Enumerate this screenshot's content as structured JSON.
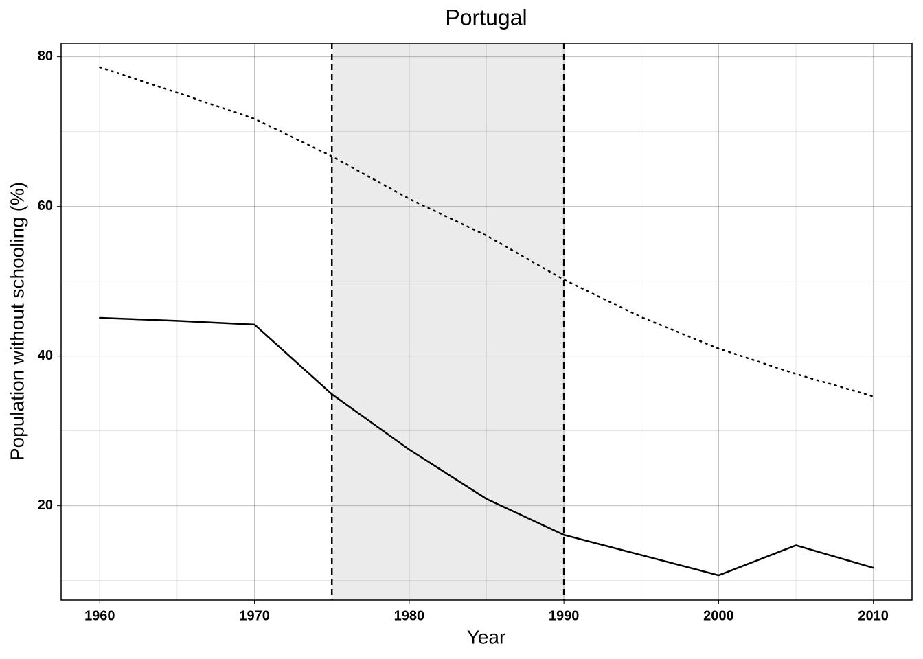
{
  "chart_data": {
    "type": "line",
    "title": "Portugal",
    "x_label": "Year",
    "y_label": "Population without schooling (%)",
    "x": [
      1960,
      1965,
      1970,
      1975,
      1980,
      1985,
      1990,
      1995,
      2000,
      2005,
      2010
    ],
    "series": [
      {
        "color": "#000000",
        "style": "solid",
        "values": [
          45.1,
          44.7,
          44.2,
          34.9,
          27.5,
          20.9,
          16.1,
          13.4,
          10.7,
          14.7,
          11.7
        ]
      },
      {
        "color": "#000000",
        "style": "dotted",
        "values": [
          78.6,
          75.2,
          71.7,
          66.7,
          61.0,
          56.1,
          50.2,
          45.2,
          41.0,
          37.6,
          34.6
        ]
      }
    ],
    "shaded_span": [
      1975,
      1990
    ],
    "xlim": [
      1957.5,
      2012.5
    ],
    "xticks": [
      1960,
      1970,
      1980,
      1990,
      2000,
      2010
    ],
    "xminor": [
      1965,
      1975,
      1985,
      1995,
      2005
    ],
    "ylim": [
      7.4,
      81.8
    ],
    "yticks": [
      20,
      40,
      60,
      80
    ],
    "yminor": [
      10,
      30,
      50,
      70
    ],
    "grid": true
  }
}
